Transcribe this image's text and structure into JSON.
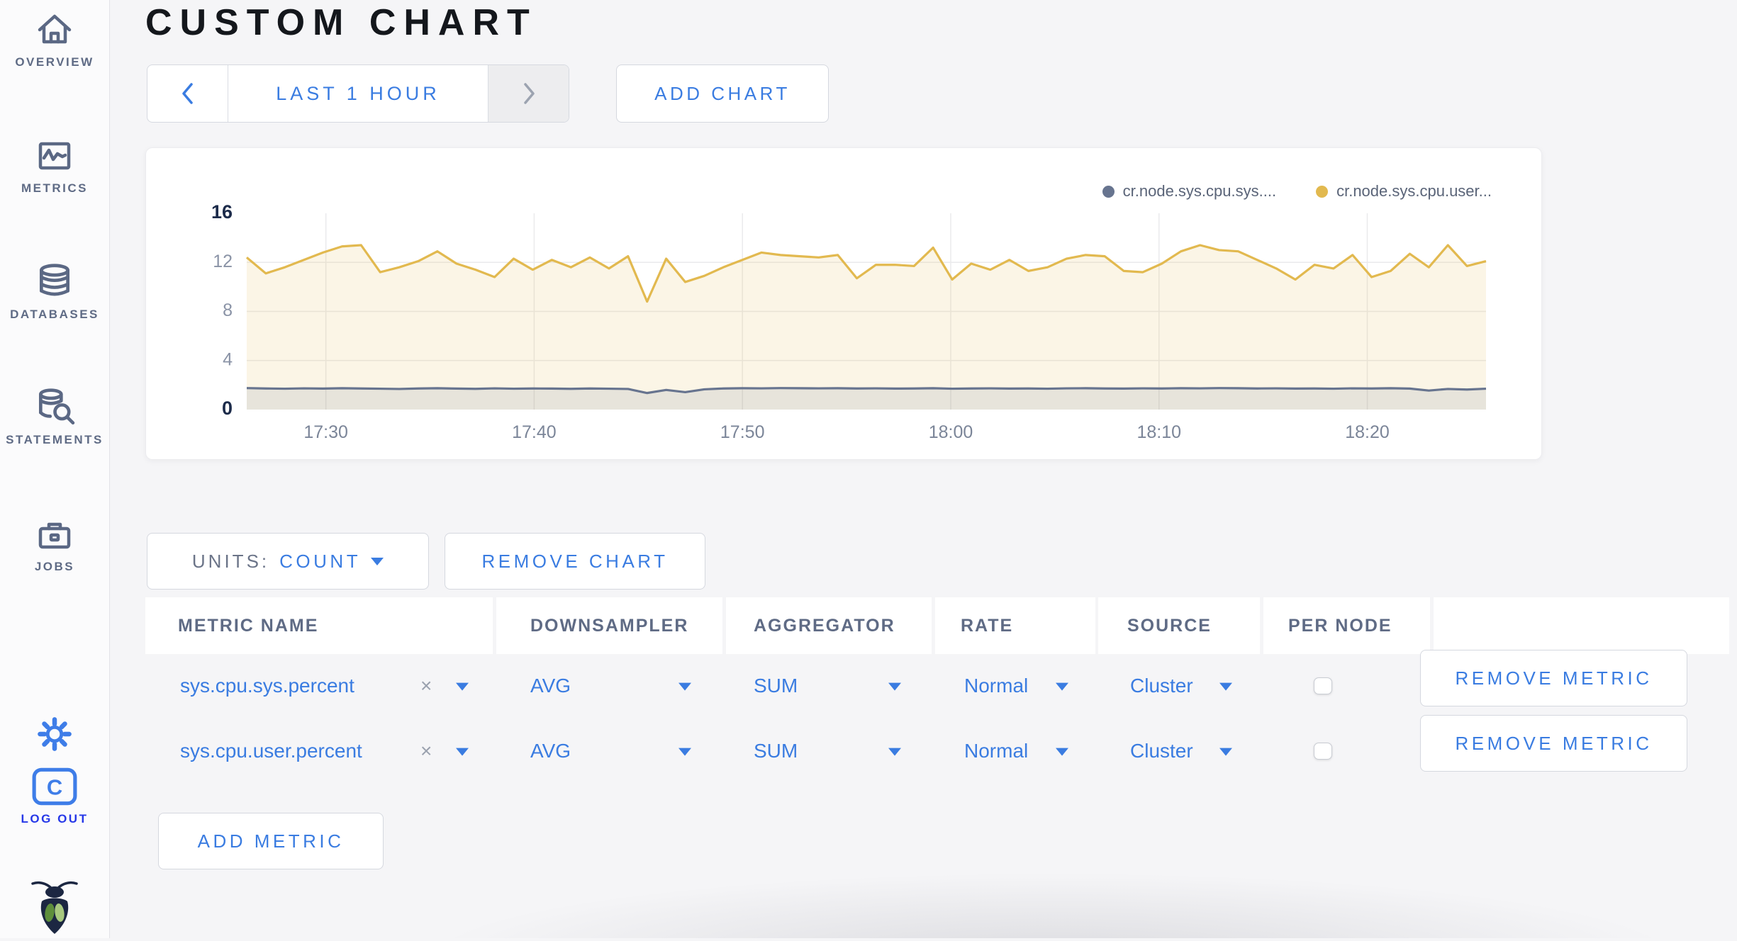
{
  "sidebar": {
    "items": [
      {
        "label": "OVERVIEW",
        "icon": "home-icon"
      },
      {
        "label": "METRICS",
        "icon": "metrics-chart-icon"
      },
      {
        "label": "DATABASES",
        "icon": "database-icon"
      },
      {
        "label": "STATEMENTS",
        "icon": "database-search-icon"
      },
      {
        "label": "JOBS",
        "icon": "briefcase-icon"
      }
    ],
    "settings_icon": "gear-icon",
    "logout": {
      "label": "LOG OUT",
      "logo_letter": "C",
      "icon": "cockroach-c-logo-icon"
    },
    "brand_icon": "cockroach-bug-icon"
  },
  "header": {
    "title": "CUSTOM CHART"
  },
  "toolbar": {
    "time_range": {
      "label": "LAST 1 HOUR",
      "prev_icon": "chevron-left-icon",
      "next_icon": "chevron-right-icon"
    },
    "add_chart_label": "ADD CHART"
  },
  "controls": {
    "units_label": "UNITS:",
    "units_value": "COUNT",
    "remove_chart_label": "REMOVE CHART",
    "add_metric_label": "ADD METRIC"
  },
  "icons": {
    "clear_x": "×"
  },
  "colors": {
    "accent_blue": "#3A7CE1",
    "logout_blue": "#2638E8",
    "slate_label": "#5F6B85",
    "series_sys": "#67748F",
    "series_user": "#E2B94F",
    "grid": "#EAEAEC"
  },
  "metrics_table": {
    "columns": [
      "METRIC NAME",
      "DOWNSAMPLER",
      "AGGREGATOR",
      "RATE",
      "SOURCE",
      "PER NODE",
      ""
    ],
    "rows": [
      {
        "metric_name": "sys.cpu.sys.percent",
        "downsampler": "AVG",
        "aggregator": "SUM",
        "rate": "Normal",
        "source": "Cluster",
        "per_node_checked": false,
        "remove_label": "REMOVE METRIC"
      },
      {
        "metric_name": "sys.cpu.user.percent",
        "downsampler": "AVG",
        "aggregator": "SUM",
        "rate": "Normal",
        "source": "Cluster",
        "per_node_checked": false,
        "remove_label": "REMOVE METRIC"
      }
    ]
  },
  "chart_data": {
    "type": "area",
    "title": "",
    "xlabel": "",
    "ylabel": "",
    "x_ticks": [
      "17:30",
      "17:40",
      "17:50",
      "18:00",
      "18:10",
      "18:20"
    ],
    "x_tick_minutes": [
      3.8,
      13.8,
      23.8,
      33.8,
      43.8,
      53.8
    ],
    "x_range_minutes": [
      0,
      59.5
    ],
    "ylim": [
      0,
      16
    ],
    "y_ticks": [
      0,
      4,
      8,
      12,
      16
    ],
    "y_bold_ticks": [
      0,
      16
    ],
    "y_gridlines": [
      4,
      8,
      12
    ],
    "grid": true,
    "legend_position": "top-right",
    "series": [
      {
        "name": "cr.node.sys.cpu.sys....",
        "color": "#67748F",
        "fill": "rgba(103,116,143,0.13)",
        "values": [
          1.75,
          1.72,
          1.7,
          1.73,
          1.71,
          1.74,
          1.72,
          1.7,
          1.68,
          1.72,
          1.74,
          1.71,
          1.69,
          1.73,
          1.7,
          1.72,
          1.71,
          1.69,
          1.72,
          1.7,
          1.68,
          1.35,
          1.6,
          1.42,
          1.65,
          1.72,
          1.74,
          1.73,
          1.75,
          1.74,
          1.73,
          1.74,
          1.72,
          1.73,
          1.71,
          1.72,
          1.74,
          1.7,
          1.72,
          1.73,
          1.71,
          1.72,
          1.7,
          1.73,
          1.74,
          1.72,
          1.71,
          1.73,
          1.72,
          1.74,
          1.73,
          1.75,
          1.74,
          1.72,
          1.73,
          1.71,
          1.72,
          1.7,
          1.73,
          1.72,
          1.74,
          1.71,
          1.55,
          1.68,
          1.63,
          1.7
        ]
      },
      {
        "name": "cr.node.sys.cpu.user...",
        "color": "#E2B94F",
        "fill": "rgba(226,185,79,0.14)",
        "values": [
          12.4,
          11.1,
          11.6,
          12.2,
          12.8,
          13.3,
          13.4,
          11.2,
          11.6,
          12.1,
          12.9,
          11.9,
          11.4,
          10.8,
          12.3,
          11.4,
          12.2,
          11.6,
          12.4,
          11.5,
          12.5,
          8.8,
          12.3,
          10.4,
          10.9,
          11.6,
          12.2,
          12.8,
          12.6,
          12.5,
          12.4,
          12.6,
          10.7,
          11.8,
          11.8,
          11.7,
          13.2,
          10.6,
          11.9,
          11.4,
          12.2,
          11.3,
          11.6,
          12.3,
          12.6,
          12.5,
          11.3,
          11.2,
          11.9,
          12.9,
          13.4,
          13.0,
          12.9,
          12.2,
          11.5,
          10.6,
          11.8,
          11.5,
          12.6,
          10.8,
          11.3,
          12.7,
          11.6,
          13.4,
          11.7,
          12.1
        ]
      }
    ]
  }
}
